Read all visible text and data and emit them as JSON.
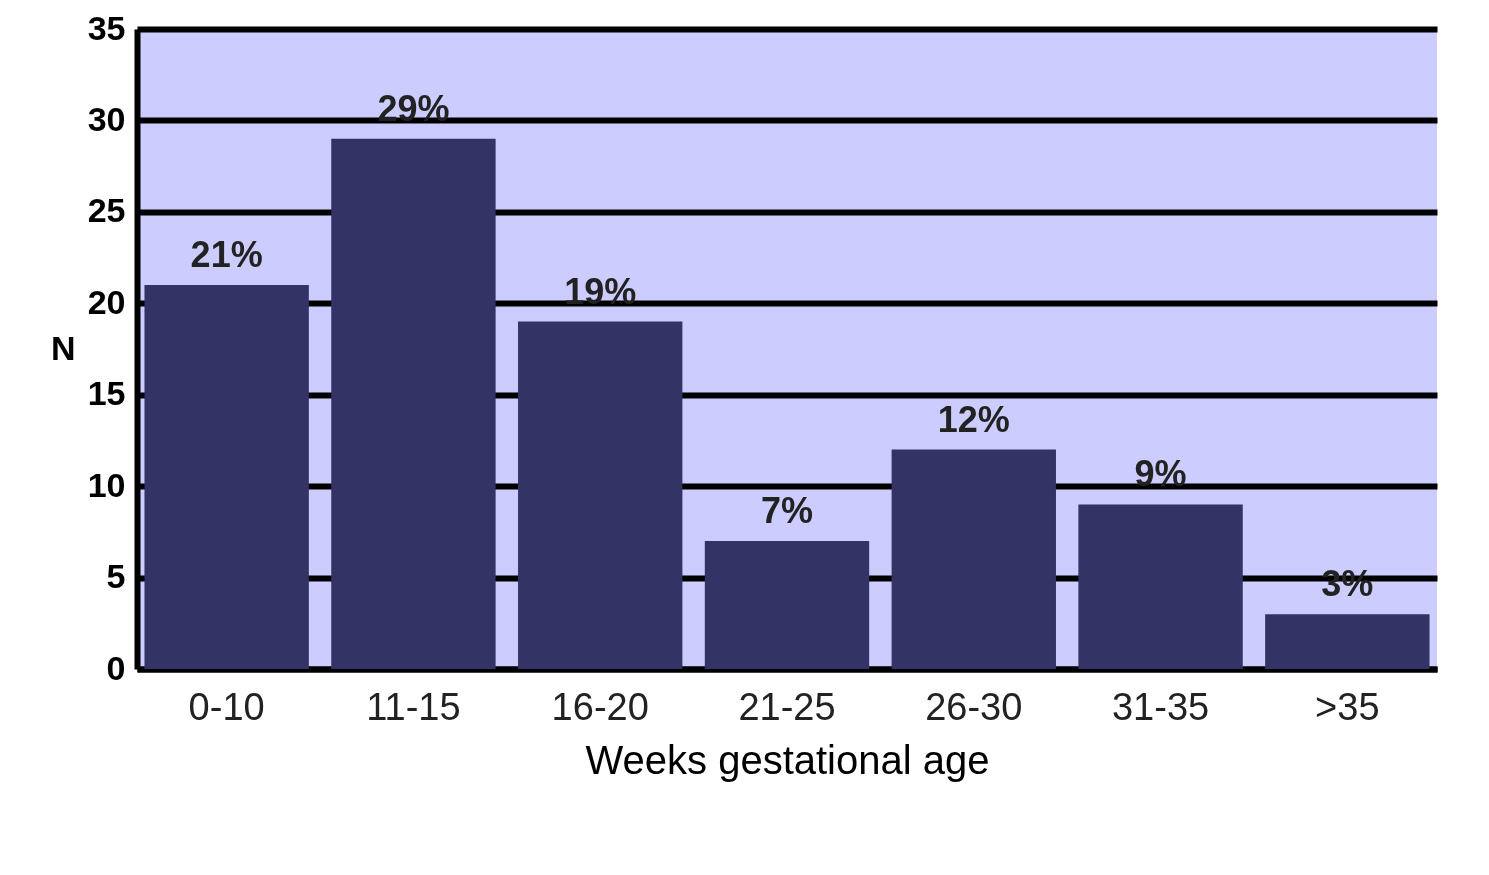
{
  "chart_data": {
    "type": "bar",
    "xlabel": "Weeks gestational age",
    "ylabel": "N",
    "categories": [
      "0-10",
      "11-15",
      "16-20",
      "21-25",
      "26-30",
      "31-35",
      ">35"
    ],
    "values": [
      21,
      29,
      19,
      7,
      12,
      9,
      3
    ],
    "value_labels": [
      "21%",
      "29%",
      "19%",
      "7%",
      "12%",
      "9%",
      "3%"
    ],
    "color": "#333366",
    "ylim": [
      0,
      35
    ],
    "yticks": [
      0,
      5,
      10,
      15,
      20,
      25,
      30,
      35
    ],
    "grid": "y"
  }
}
